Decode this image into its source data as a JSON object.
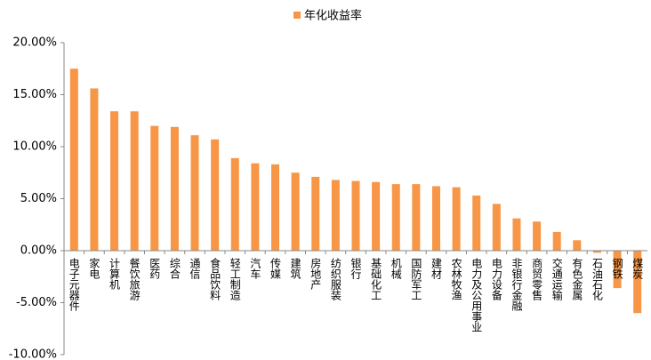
{
  "chart_data": {
    "type": "bar",
    "categories": [
      "电子元器件",
      "家电",
      "计算机",
      "餐饮旅游",
      "医药",
      "综合",
      "通信",
      "食品饮料",
      "轻工制造",
      "汽车",
      "传媒",
      "建筑",
      "房地产",
      "纺织服装",
      "银行",
      "基础化工",
      "机械",
      "国防军工",
      "建材",
      "农林牧渔",
      "电力及公用事业",
      "电力设备",
      "非银行金融",
      "商贸零售",
      "交通运输",
      "有色金属",
      "石油石化",
      "钢铁",
      "煤炭"
    ],
    "series": [
      {
        "name": "年化收益率",
        "color": "#f79646",
        "values": [
          17.5,
          15.6,
          13.4,
          13.4,
          12.0,
          11.9,
          11.1,
          10.7,
          8.9,
          8.4,
          8.3,
          7.5,
          7.1,
          6.8,
          6.7,
          6.6,
          6.4,
          6.4,
          6.2,
          6.1,
          5.3,
          4.5,
          3.1,
          2.8,
          1.8,
          1.0,
          -0.2,
          -3.6,
          -6.0
        ]
      }
    ],
    "ylim": [
      -10,
      20
    ],
    "yticks": [
      {
        "value": -10,
        "label": "-10.00%"
      },
      {
        "value": -5,
        "label": "-5.00%"
      },
      {
        "value": 0,
        "label": "0.00%"
      },
      {
        "value": 5,
        "label": "5.00%"
      },
      {
        "value": 10,
        "label": "10.00%"
      },
      {
        "value": 15,
        "label": "15.00%"
      },
      {
        "value": 20,
        "label": "20.00%"
      }
    ],
    "grid": false,
    "legend": "top"
  }
}
